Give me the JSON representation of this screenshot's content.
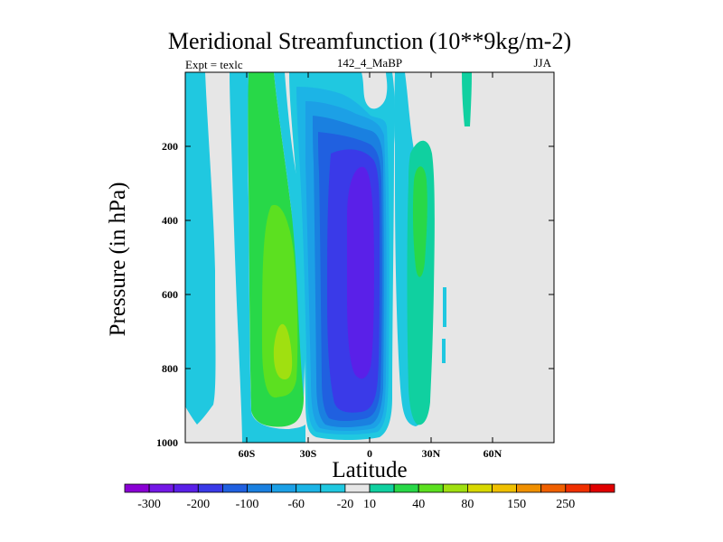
{
  "chart_data": {
    "type": "contour",
    "title": "Meridional Streamfunction (10**9kg/m-2)",
    "subtitle_left": "Expt = texlc",
    "subtitle_center": "142_4_MaBP",
    "subtitle_right": "JJA",
    "xlabel": "Latitude",
    "ylabel": "Pressure (in hPa)",
    "xlim": [
      -90,
      90
    ],
    "ylim": [
      1000,
      0
    ],
    "x_ticks": [
      {
        "value": -60,
        "label": "60S"
      },
      {
        "value": -30,
        "label": "30S"
      },
      {
        "value": 0,
        "label": "0"
      },
      {
        "value": 30,
        "label": "30N"
      },
      {
        "value": 60,
        "label": "60N"
      }
    ],
    "y_ticks": [
      {
        "value": 200,
        "label": "200"
      },
      {
        "value": 400,
        "label": "400"
      },
      {
        "value": 600,
        "label": "600"
      },
      {
        "value": 800,
        "label": "800"
      },
      {
        "value": 1000,
        "label": "1000"
      }
    ],
    "background_level_color": "#e6e6e6",
    "colorbar": {
      "colors": [
        "#8a00d4",
        "#7418e6",
        "#5a20e8",
        "#3a3ae8",
        "#2060e0",
        "#1a80e0",
        "#1ca0e6",
        "#1cb4e6",
        "#20c8e0",
        "#e6e6e6",
        "#10d0a0",
        "#28d848",
        "#5ce020",
        "#a0e010",
        "#d8d800",
        "#f0c000",
        "#f09000",
        "#f06000",
        "#f03000",
        "#e00000"
      ],
      "tick_labels": [
        {
          "after_box": 1,
          "label": "-300"
        },
        {
          "after_box": 3,
          "label": "-200"
        },
        {
          "after_box": 5,
          "label": "-100"
        },
        {
          "after_box": 7,
          "label": "-60"
        },
        {
          "after_box": 9,
          "label": "-20"
        },
        {
          "after_box": 10,
          "label": "10"
        },
        {
          "after_box": 12,
          "label": "40"
        },
        {
          "after_box": 14,
          "label": "80"
        },
        {
          "after_box": 16,
          "label": "150"
        },
        {
          "after_box": 18,
          "label": "250"
        }
      ]
    }
  }
}
